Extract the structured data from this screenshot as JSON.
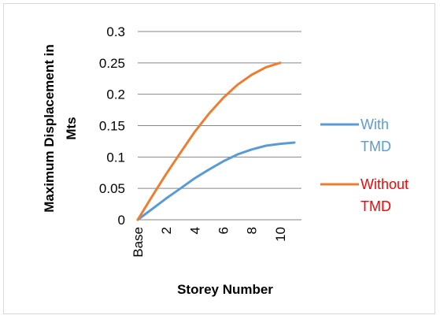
{
  "chart_data": {
    "type": "line",
    "title": "",
    "xlabel": "Storey Number",
    "ylabel": "Maximum Displacement in Mts",
    "x": [
      0,
      1,
      2,
      3,
      4,
      5,
      6,
      7,
      8,
      9,
      10,
      11
    ],
    "x_tick_labels": [
      "Base",
      "2",
      "4",
      "6",
      "8",
      "10"
    ],
    "x_tick_values": [
      0,
      2,
      4,
      6,
      8,
      10
    ],
    "y_tick_labels": [
      "0",
      "0.05",
      "0.1",
      "0.15",
      "0.2",
      "0.25",
      "0.3"
    ],
    "ylim": [
      0,
      0.3
    ],
    "grid": "horizontal",
    "legend": "right",
    "series": [
      {
        "name": "With TMD",
        "legend_lines": [
          "With",
          "TMD"
        ],
        "color": "#5b9bd5",
        "legend_text_color": "#5b9bd5",
        "x": [
          0,
          1,
          2,
          3,
          4,
          5,
          6,
          7,
          8,
          9,
          10,
          11
        ],
        "values": [
          0,
          0.017,
          0.034,
          0.05,
          0.066,
          0.08,
          0.093,
          0.104,
          0.112,
          0.118,
          0.121,
          0.123
        ]
      },
      {
        "name": "Without TMD",
        "legend_lines": [
          "Without",
          "TMD"
        ],
        "color": "#ed7d31",
        "legend_text_color": "#ff0000",
        "x": [
          0,
          1,
          2,
          3,
          4,
          5,
          6,
          7,
          8,
          9,
          10
        ],
        "values": [
          0,
          0.037,
          0.073,
          0.107,
          0.14,
          0.169,
          0.194,
          0.215,
          0.231,
          0.243,
          0.25
        ]
      }
    ]
  }
}
